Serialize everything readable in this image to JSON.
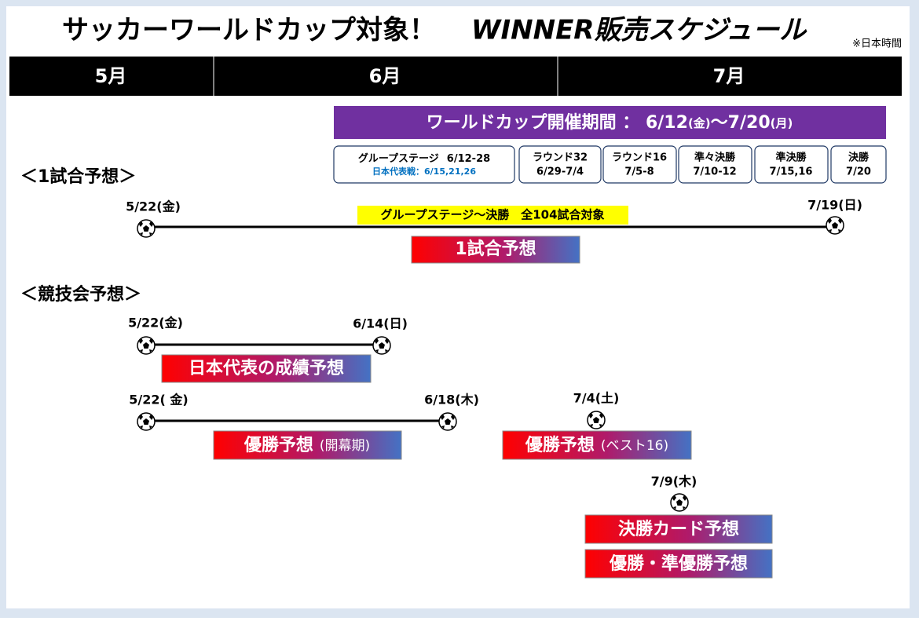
{
  "header": {
    "title": "サッカーワールドカップ対象！",
    "title_em": "WINNER販売スケジュール",
    "note": "※日本時間"
  },
  "months": [
    "5月",
    "6月",
    "7月"
  ],
  "period": {
    "label": "ワールドカップ開催期間 ： ",
    "start": "6/12",
    "start_day": "(金)",
    "sep": "〜",
    "end": "7/20",
    "end_day": "(月)"
  },
  "stages": [
    {
      "name": "グループステージ",
      "dates": "6/12-28",
      "note": "日本代表戦：6/15,21,26"
    },
    {
      "name": "ラウンド32",
      "dates": "6/29-7/4"
    },
    {
      "name": "ラウンド16",
      "dates": "7/5-8"
    },
    {
      "name": "準々決勝",
      "dates": "7/10-12"
    },
    {
      "name": "準決勝",
      "dates": "7/15,16"
    },
    {
      "name": "決勝",
      "dates": "7/20"
    }
  ],
  "single": {
    "heading": "＜1試合予想＞",
    "start": "5/22(金)",
    "end": "7/19(日)",
    "scope": "グループステージ〜決勝　全104試合対象",
    "product": "1試合予想"
  },
  "contest": {
    "heading": "＜競技会予想＞",
    "japan": {
      "start": "5/22(金)",
      "end": "6/14(日)",
      "product": "日本代表の成績予想"
    },
    "winner_open": {
      "start": "5/22( 金)",
      "end": "6/18(木)",
      "product": "優勝予想",
      "suffix": "(開幕期)"
    },
    "winner_16": {
      "date": "7/4(土)",
      "product": "優勝予想",
      "suffix": "(ベスト16)"
    },
    "final": {
      "date": "7/9(木)",
      "products": [
        "決勝カード予想",
        "優勝・準優勝予想"
      ]
    }
  }
}
